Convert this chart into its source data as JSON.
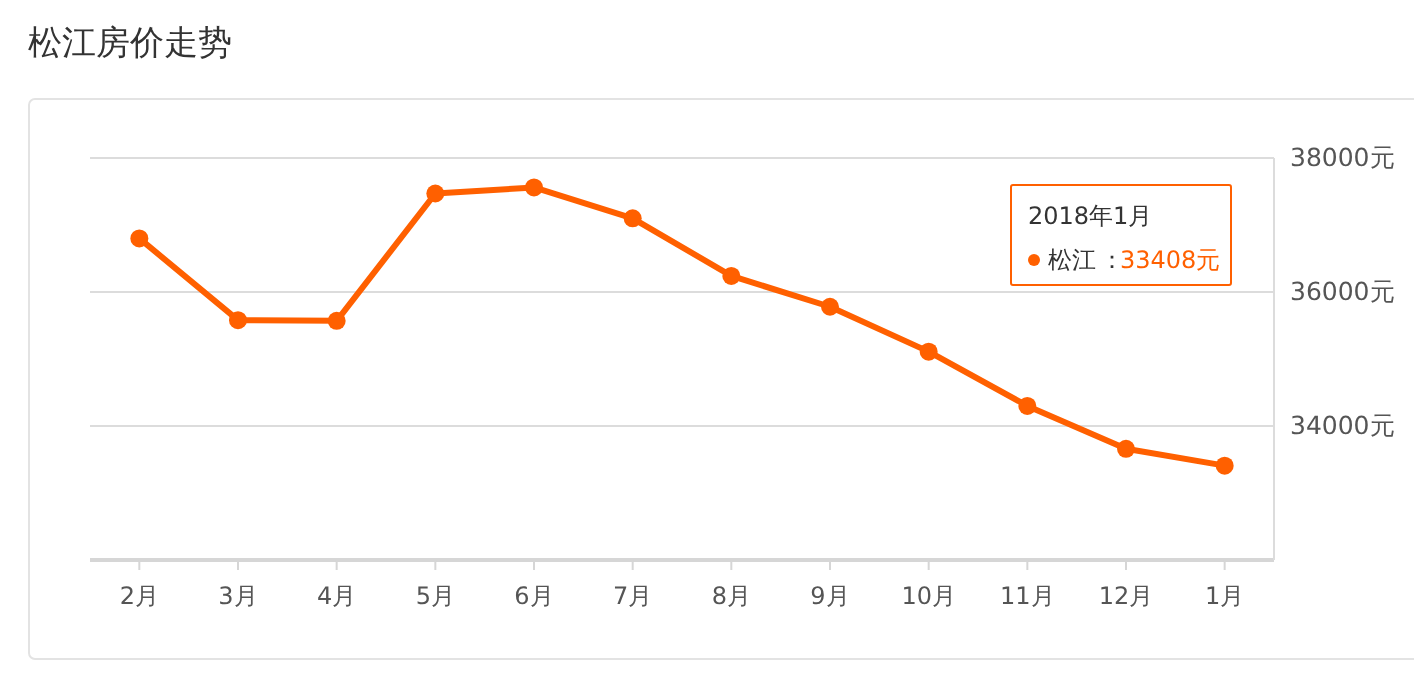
{
  "chart_data": {
    "type": "line",
    "title": "松江房价走势",
    "categories": [
      "2月",
      "3月",
      "4月",
      "5月",
      "6月",
      "7月",
      "8月",
      "9月",
      "10月",
      "11月",
      "12月",
      "1月"
    ],
    "series": [
      {
        "name": "松江",
        "color": "#ff6000",
        "values": [
          36800,
          35580,
          35570,
          37470,
          37560,
          37100,
          36240,
          35780,
          35110,
          34300,
          33660,
          33408
        ]
      }
    ],
    "ylim": [
      32000,
      38000
    ],
    "yticks": [
      {
        "value": 32000,
        "label": null
      },
      {
        "value": 34000,
        "label": "34000元"
      },
      {
        "value": 36000,
        "label": "36000元"
      },
      {
        "value": 38000,
        "label": "38000元"
      }
    ],
    "grid": "y",
    "marker": "circle",
    "line_style": "solid",
    "legend": "top right",
    "annotations": [
      "2018年1月",
      "：",
      "33408元"
    ]
  }
}
